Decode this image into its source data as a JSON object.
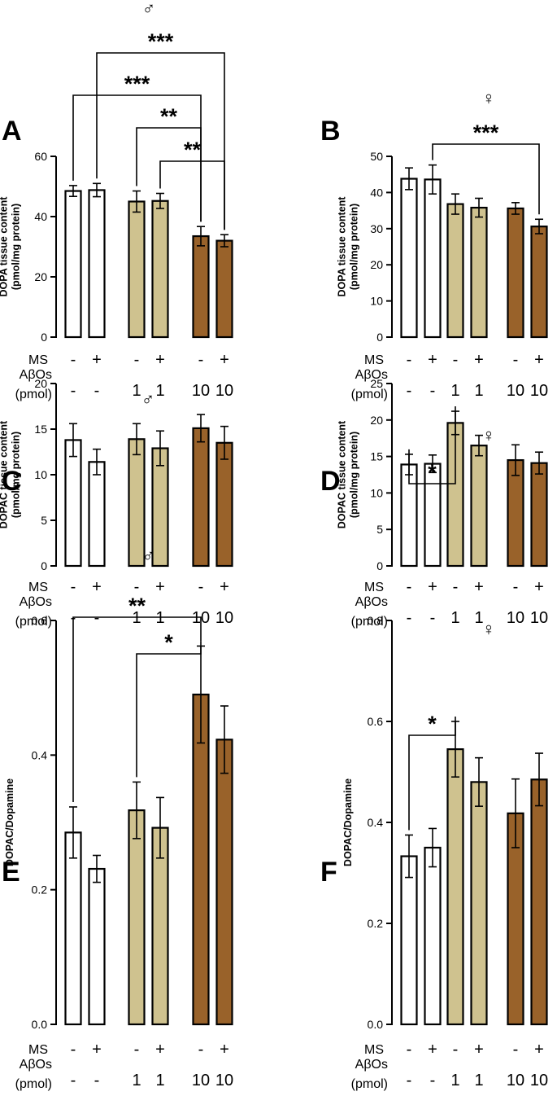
{
  "figure": {
    "condition_labels": {
      "ms": "MS",
      "abos": "AβOs",
      "unit": "(pmol)"
    },
    "ms_marks": [
      "-",
      "+",
      "-",
      "+",
      "-",
      "+"
    ],
    "abos_marks": [
      "-",
      "-",
      "1",
      "1",
      "10",
      "10"
    ],
    "colors": {
      "control": "#ffffff",
      "abo_1": "#cfc28f",
      "abo_10": "#99622a"
    }
  },
  "chart_data": [
    {
      "type": "bar",
      "panel": "A",
      "sex": "♂",
      "ylabel_lines": [
        "DOPA tissue content",
        "(pmol/mg protein)"
      ],
      "ylim": [
        0,
        60
      ],
      "yticks": [
        0,
        20,
        40,
        60
      ],
      "values": [
        48.5,
        48.8,
        45.0,
        45.2,
        33.5,
        32.0
      ],
      "errors": [
        1.8,
        2.2,
        3.5,
        2.5,
        3.2,
        2.0
      ],
      "comparisons": [
        {
          "from": 1,
          "to": 5,
          "label": "***"
        },
        {
          "from": 0,
          "to": 4,
          "label": "***"
        },
        {
          "from": 2,
          "to": 4,
          "label": "**"
        },
        {
          "from": 3,
          "to": 5,
          "label": "**"
        }
      ]
    },
    {
      "type": "bar",
      "panel": "B",
      "sex": "♀",
      "ylabel_lines": [
        "DOPA tissue content",
        "(pmol/mg protein)"
      ],
      "ylim": [
        0,
        50
      ],
      "yticks": [
        0,
        10,
        20,
        30,
        40,
        50
      ],
      "values": [
        43.8,
        43.6,
        36.8,
        35.8,
        35.6,
        30.6
      ],
      "errors": [
        3.0,
        4.0,
        2.8,
        2.6,
        1.6,
        2.0
      ],
      "comparisons": [
        {
          "from": 1,
          "to": 5,
          "label": "***"
        }
      ]
    },
    {
      "type": "bar",
      "panel": "C",
      "sex": "♂",
      "ylabel_lines": [
        "DOPAC tissue content",
        "(pmol/mg protein)"
      ],
      "ylim": [
        0,
        20
      ],
      "yticks": [
        0,
        5,
        10,
        15,
        20
      ],
      "values": [
        13.8,
        11.4,
        13.9,
        12.9,
        15.1,
        13.5
      ],
      "errors": [
        1.8,
        1.4,
        1.7,
        1.9,
        1.5,
        1.8
      ],
      "comparisons": []
    },
    {
      "type": "bar",
      "panel": "D",
      "sex": "♀",
      "ylabel_lines": [
        "DOPAC tissue content",
        "(pmol/mg protein)"
      ],
      "ylim": [
        0,
        25
      ],
      "yticks": [
        0,
        5,
        10,
        15,
        20,
        25
      ],
      "values": [
        13.9,
        14.0,
        19.6,
        16.5,
        14.5,
        14.1
      ],
      "errors": [
        1.4,
        1.2,
        1.6,
        1.4,
        2.1,
        1.5
      ],
      "comparisons": [
        {
          "from": 0,
          "to": 2,
          "label": "*"
        }
      ]
    },
    {
      "type": "bar",
      "panel": "E",
      "sex": "♂",
      "ylabel_lines": [
        "DOPAC/Dopamine"
      ],
      "ylim": [
        0,
        0.6
      ],
      "yticks": [
        0.0,
        0.2,
        0.4,
        0.6
      ],
      "values": [
        0.285,
        0.231,
        0.318,
        0.292,
        0.49,
        0.423
      ],
      "errors": [
        0.038,
        0.02,
        0.042,
        0.045,
        0.072,
        0.05
      ],
      "comparisons": [
        {
          "from": 0,
          "to": 4,
          "label": "**"
        },
        {
          "from": 2,
          "to": 4,
          "label": "*"
        }
      ]
    },
    {
      "type": "bar",
      "panel": "F",
      "sex": "♀",
      "ylabel_lines": [
        "DOPAC/Dopamine"
      ],
      "ylim": [
        0,
        0.8
      ],
      "yticks": [
        0.0,
        0.2,
        0.4,
        0.6,
        0.8
      ],
      "values": [
        0.333,
        0.35,
        0.545,
        0.48,
        0.418,
        0.485
      ],
      "errors": [
        0.042,
        0.038,
        0.055,
        0.048,
        0.068,
        0.052
      ],
      "comparisons": [
        {
          "from": 0,
          "to": 2,
          "label": "*"
        }
      ]
    }
  ]
}
